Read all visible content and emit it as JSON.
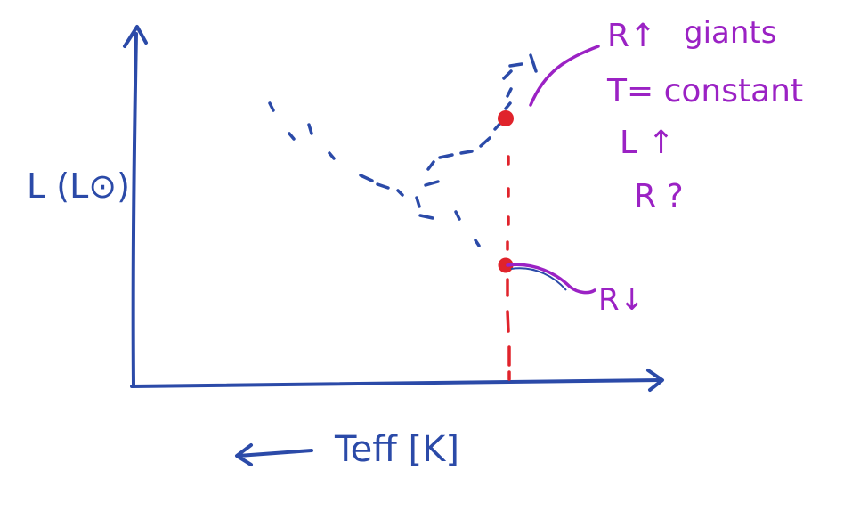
{
  "labels": {
    "y_axis": "L (L⊙)",
    "x_axis": "Teff [K]",
    "giants": "giants",
    "r_up": "R↑",
    "t_constant": "T= constant",
    "l_up": "L ↑",
    "r_question": "R ?",
    "r_down": "R↓"
  },
  "colors": {
    "axis": "#2b4aa8",
    "annotation": "#9b22c4",
    "marker": "#e0232b",
    "background": "#ffffff"
  },
  "icons": {
    "x_direction": "left-arrow-icon"
  }
}
